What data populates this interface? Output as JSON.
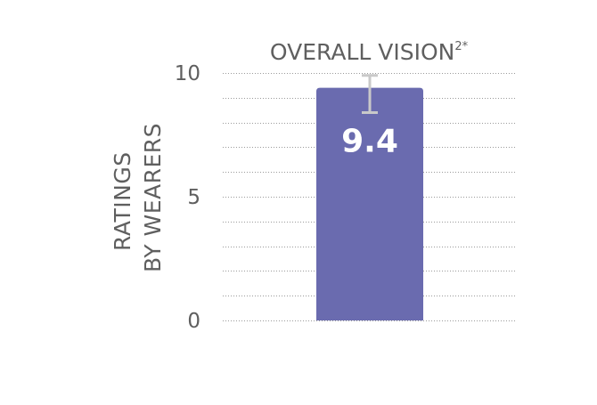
{
  "chart_data": {
    "type": "bar",
    "title": "OVERALL VISION",
    "title_superscript": "2*",
    "ylabel_lines": [
      "RATINGS",
      "BY WEARERS"
    ],
    "xlabel": "",
    "categories": [
      ""
    ],
    "values": [
      9.4
    ],
    "value_labels": [
      "9.4"
    ],
    "error_bars": [
      {
        "low": 8.4,
        "high": 9.9
      }
    ],
    "ylim": [
      0,
      10
    ],
    "yticks": [
      0,
      5,
      10
    ],
    "ytick_labels": [
      "0",
      "5",
      "10"
    ],
    "minor_gridlines": [
      1,
      2,
      3,
      4,
      6,
      7,
      8,
      9
    ],
    "grid": true,
    "grid_style": "dotted",
    "legend": "none",
    "colors": {
      "bar": "#6a6baf",
      "error_bar": "#c9c9c9",
      "text": "#5f5f5f",
      "grid": "#9a9a9a",
      "value_text": "#ffffff"
    }
  }
}
